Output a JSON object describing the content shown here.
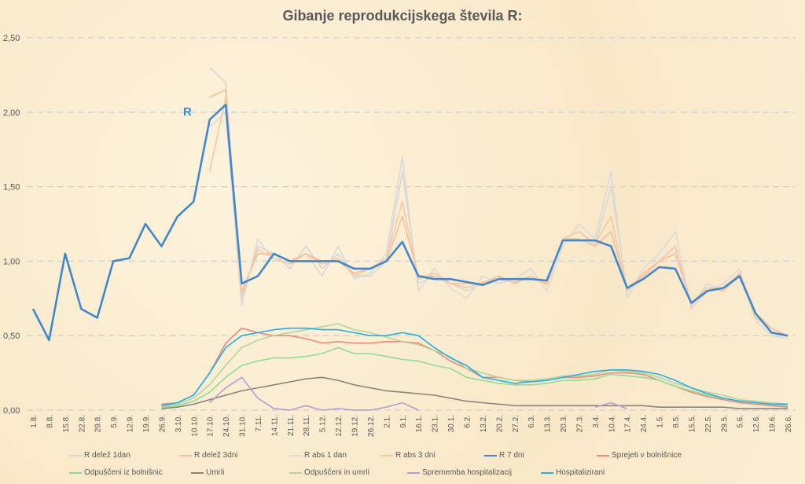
{
  "chart_data": {
    "type": "line",
    "title": "Gibanje reprodukcijskega števila R:",
    "annotation": "R",
    "xlabel": "",
    "ylabel": "",
    "ylim": [
      0,
      2.5
    ],
    "yticks": [
      "0,00",
      "0,50",
      "1,00",
      "1,50",
      "2,00",
      "2,50"
    ],
    "grid": true,
    "legend_position": "bottom",
    "categories": [
      "1.8.",
      "8.8.",
      "15.8.",
      "22.8.",
      "29.8.",
      "5.9.",
      "12.9.",
      "19.9.",
      "26.9.",
      "3.10.",
      "10.10.",
      "17.10.",
      "24.10.",
      "31.10.",
      "7.11.",
      "14.11.",
      "21.11.",
      "28.11.",
      "5.12.",
      "12.12.",
      "19.12.",
      "26.12.",
      "2.1.",
      "9.1.",
      "16.1.",
      "23.1.",
      "30.1.",
      "6.2.",
      "13.2.",
      "20.2.",
      "27.2.",
      "6.3.",
      "13.3.",
      "20.3.",
      "27.3.",
      "3.4.",
      "10.4.",
      "17.4.",
      "24.4.",
      "1.5.",
      "8.5.",
      "15.5.",
      "22.5.",
      "29.5.",
      "5.6.",
      "12.6.",
      "19.6.",
      "26.6."
    ],
    "series": [
      {
        "name": "R delež 1dan",
        "color": "#d6d6d6",
        "values": [
          null,
          null,
          null,
          null,
          null,
          null,
          null,
          null,
          null,
          null,
          null,
          2.3,
          2.2,
          0.75,
          1.1,
          1.05,
          0.95,
          1.1,
          0.95,
          1.05,
          0.9,
          0.9,
          1.0,
          1.6,
          0.85,
          0.9,
          0.85,
          0.8,
          0.85,
          0.9,
          0.85,
          0.9,
          0.85,
          1.15,
          1.2,
          1.1,
          1.5,
          0.8,
          0.9,
          1.0,
          1.1,
          0.7,
          0.85,
          0.8,
          0.9,
          0.65,
          0.55,
          0.5
        ]
      },
      {
        "name": "R delež 3dni",
        "color": "#f4c09a",
        "values": [
          null,
          null,
          null,
          null,
          null,
          null,
          null,
          null,
          null,
          null,
          null,
          2.1,
          2.15,
          0.8,
          1.05,
          1.05,
          1.0,
          1.05,
          1.0,
          1.0,
          0.92,
          0.95,
          1.0,
          1.3,
          0.9,
          0.9,
          0.85,
          0.85,
          0.85,
          0.9,
          0.85,
          0.9,
          0.85,
          1.15,
          1.15,
          1.1,
          1.2,
          0.82,
          0.9,
          1.0,
          1.05,
          0.72,
          0.82,
          0.8,
          0.92,
          0.65,
          0.55,
          0.5
        ]
      },
      {
        "name": "R abs 1 dan",
        "color": "#d9d9d9",
        "values": [
          null,
          null,
          null,
          null,
          null,
          null,
          null,
          null,
          null,
          null,
          null,
          1.9,
          2.0,
          0.7,
          1.15,
          1.0,
          1.0,
          1.05,
          0.9,
          1.1,
          0.88,
          0.92,
          1.05,
          1.7,
          0.8,
          0.95,
          0.82,
          0.75,
          0.9,
          0.85,
          0.88,
          0.95,
          0.8,
          1.1,
          1.25,
          1.15,
          1.6,
          0.75,
          0.95,
          1.05,
          1.2,
          0.68,
          0.8,
          0.85,
          0.95,
          0.6,
          0.5,
          0.48
        ]
      },
      {
        "name": "R abs 3 dni",
        "color": "#f7c6a3",
        "values": [
          null,
          null,
          null,
          null,
          null,
          null,
          null,
          null,
          null,
          null,
          null,
          1.6,
          2.1,
          0.78,
          1.08,
          1.02,
          0.98,
          1.05,
          0.98,
          1.02,
          0.9,
          0.95,
          1.02,
          1.4,
          0.88,
          0.92,
          0.85,
          0.82,
          0.86,
          0.88,
          0.86,
          0.9,
          0.84,
          1.15,
          1.2,
          1.12,
          1.3,
          0.8,
          0.92,
          1.0,
          1.1,
          0.7,
          0.82,
          0.82,
          0.92,
          0.62,
          0.55,
          0.5
        ]
      },
      {
        "name": "R 7 dni",
        "color": "#3f88d0",
        "values": [
          0.68,
          0.47,
          1.05,
          0.68,
          0.62,
          1.0,
          1.02,
          1.25,
          1.1,
          1.3,
          1.4,
          1.95,
          2.05,
          0.85,
          0.9,
          1.05,
          1.0,
          1.0,
          1.0,
          1.0,
          0.95,
          0.95,
          1.0,
          1.13,
          0.9,
          0.88,
          0.88,
          0.86,
          0.84,
          0.88,
          0.88,
          0.88,
          0.87,
          1.14,
          1.14,
          1.14,
          1.1,
          0.82,
          0.88,
          0.96,
          0.95,
          0.72,
          0.8,
          0.82,
          0.9,
          0.65,
          0.52,
          0.5
        ]
      },
      {
        "name": "Sprejeti v bolnišnice",
        "color": "#ee8a78",
        "values": [
          null,
          null,
          null,
          null,
          null,
          null,
          null,
          null,
          0.04,
          0.05,
          0.1,
          0.25,
          0.45,
          0.55,
          0.52,
          0.5,
          0.5,
          0.48,
          0.45,
          0.46,
          0.45,
          0.45,
          0.46,
          0.46,
          0.45,
          0.4,
          0.33,
          0.28,
          0.22,
          0.22,
          0.2,
          0.19,
          0.2,
          0.22,
          0.22,
          0.23,
          0.25,
          0.25,
          0.24,
          0.2,
          0.16,
          0.12,
          0.09,
          0.07,
          0.05,
          0.04,
          0.03,
          0.02
        ]
      },
      {
        "name": "Odpuščeni iz bolnišnic",
        "color": "#8fdc95",
        "values": [
          null,
          null,
          null,
          null,
          null,
          null,
          null,
          null,
          0.02,
          0.03,
          0.06,
          0.12,
          0.22,
          0.3,
          0.33,
          0.35,
          0.35,
          0.36,
          0.38,
          0.42,
          0.38,
          0.38,
          0.36,
          0.34,
          0.33,
          0.3,
          0.28,
          0.22,
          0.2,
          0.18,
          0.17,
          0.17,
          0.18,
          0.2,
          0.2,
          0.21,
          0.24,
          0.23,
          0.22,
          0.2,
          0.16,
          0.13,
          0.1,
          0.08,
          0.06,
          0.05,
          0.04,
          0.03
        ]
      },
      {
        "name": "Umrli",
        "color": "#8c8479",
        "values": [
          null,
          null,
          null,
          null,
          null,
          null,
          null,
          null,
          0.01,
          0.02,
          0.04,
          0.07,
          0.1,
          0.13,
          0.15,
          0.17,
          0.19,
          0.21,
          0.22,
          0.2,
          0.17,
          0.15,
          0.13,
          0.12,
          0.11,
          0.1,
          0.08,
          0.06,
          0.05,
          0.04,
          0.03,
          0.03,
          0.03,
          0.03,
          0.03,
          0.03,
          0.03,
          0.03,
          0.03,
          0.02,
          0.02,
          0.02,
          0.02,
          0.02,
          0.01,
          0.01,
          0.01,
          0.01
        ]
      },
      {
        "name": "Odpuščeni in umrli",
        "color": "#b5d39a",
        "values": [
          null,
          null,
          null,
          null,
          null,
          null,
          null,
          null,
          0.03,
          0.04,
          0.08,
          0.17,
          0.3,
          0.42,
          0.47,
          0.5,
          0.52,
          0.54,
          0.56,
          0.58,
          0.54,
          0.52,
          0.49,
          0.46,
          0.44,
          0.4,
          0.36,
          0.28,
          0.25,
          0.22,
          0.2,
          0.2,
          0.21,
          0.23,
          0.23,
          0.24,
          0.27,
          0.26,
          0.25,
          0.22,
          0.18,
          0.15,
          0.12,
          0.1,
          0.07,
          0.06,
          0.05,
          0.04
        ]
      },
      {
        "name": "Sprememba hospitalizacij",
        "color": "#b99ad2",
        "values": [
          null,
          null,
          null,
          null,
          null,
          null,
          null,
          null,
          null,
          null,
          null,
          0.05,
          0.15,
          0.22,
          0.08,
          0.01,
          0.0,
          0.03,
          0.0,
          0.01,
          0.0,
          0.0,
          0.02,
          0.05,
          0.0,
          null,
          null,
          null,
          null,
          null,
          null,
          null,
          null,
          null,
          null,
          0.02,
          0.05,
          0.01,
          null,
          null,
          null,
          null,
          null,
          null,
          null,
          null,
          null,
          null
        ]
      },
      {
        "name": "Hospitalizirani",
        "color": "#1db3ea",
        "values": [
          null,
          null,
          null,
          null,
          null,
          null,
          null,
          null,
          0.03,
          0.05,
          0.1,
          0.25,
          0.42,
          0.5,
          0.52,
          0.54,
          0.55,
          0.55,
          0.54,
          0.54,
          0.52,
          0.5,
          0.5,
          0.52,
          0.5,
          0.42,
          0.35,
          0.3,
          0.22,
          0.2,
          0.18,
          0.19,
          0.2,
          0.22,
          0.24,
          0.26,
          0.27,
          0.27,
          0.26,
          0.24,
          0.2,
          0.15,
          0.11,
          0.08,
          0.06,
          0.05,
          0.04,
          0.04
        ]
      }
    ]
  }
}
